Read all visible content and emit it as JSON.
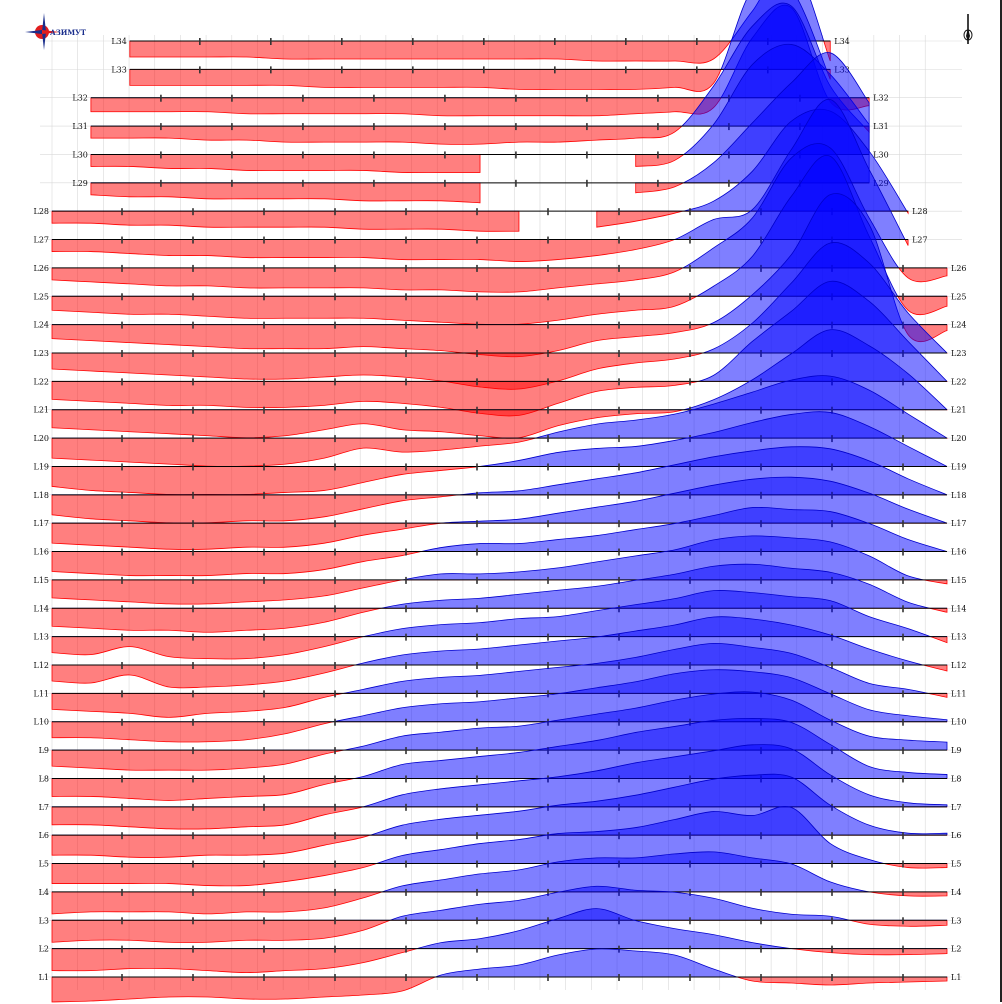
{
  "logo": {
    "text": "АЗИМУТ",
    "colors": {
      "red": "#e11d1d",
      "blue": "#1a2e8c"
    }
  },
  "north_arrow": {
    "icon": "north-arrow-icon"
  },
  "chart_data": {
    "type": "area",
    "description_of_encoding": "stacked profile lines; positive values filled blue above baseline, negative values filled red below",
    "colors": {
      "positive": "#0000ff",
      "negative": "#ff0000",
      "grid": "#d9d9d9",
      "baseline": "#000000"
    },
    "grid": true,
    "stations": 24,
    "profiles": [
      {
        "name": "L1",
        "values": [
          -25,
          -24,
          -22,
          -20,
          -20,
          -22,
          -22,
          -20,
          -18,
          -14,
          2,
          8,
          12,
          22,
          28,
          26,
          22,
          8,
          -4,
          -6,
          -8,
          -6,
          -5,
          -4
        ]
      },
      {
        "name": "L2",
        "values": [
          -22,
          -22,
          -20,
          -20,
          -22,
          -24,
          -22,
          -20,
          -14,
          -4,
          6,
          10,
          18,
          30,
          40,
          28,
          20,
          14,
          6,
          0,
          -4,
          -6,
          -6,
          -5
        ]
      },
      {
        "name": "L3",
        "values": [
          -22,
          -20,
          -20,
          -22,
          -22,
          -20,
          -20,
          -18,
          -10,
          4,
          10,
          16,
          20,
          28,
          34,
          30,
          28,
          22,
          12,
          6,
          4,
          -4,
          -6,
          -5
        ]
      },
      {
        "name": "L4",
        "values": [
          -22,
          -20,
          -20,
          -20,
          -22,
          -20,
          -20,
          -16,
          -6,
          6,
          12,
          18,
          22,
          30,
          34,
          34,
          38,
          40,
          34,
          28,
          10,
          0,
          -4,
          -4
        ]
      },
      {
        "name": "L5",
        "values": [
          -20,
          -20,
          -20,
          -20,
          -22,
          -22,
          -18,
          -12,
          -4,
          8,
          14,
          20,
          24,
          30,
          32,
          36,
          44,
          52,
          48,
          56,
          20,
          4,
          -4,
          -4
        ]
      },
      {
        "name": "L6",
        "values": [
          -20,
          -20,
          -22,
          -22,
          -20,
          -20,
          -18,
          -10,
          -2,
          10,
          16,
          20,
          24,
          30,
          34,
          40,
          48,
          56,
          60,
          58,
          30,
          10,
          2,
          2
        ]
      },
      {
        "name": "L7",
        "values": [
          -18,
          -18,
          -20,
          -22,
          -22,
          -20,
          -18,
          -8,
          0,
          12,
          18,
          22,
          26,
          30,
          36,
          44,
          50,
          56,
          62,
          58,
          32,
          12,
          4,
          2
        ]
      },
      {
        "name": "L8",
        "values": [
          -18,
          -18,
          -20,
          -22,
          -20,
          -18,
          -16,
          -6,
          2,
          14,
          18,
          22,
          26,
          32,
          38,
          46,
          52,
          58,
          60,
          56,
          34,
          12,
          6,
          4
        ]
      },
      {
        "name": "L9",
        "values": [
          -16,
          -18,
          -20,
          -20,
          -20,
          -18,
          -14,
          -4,
          4,
          14,
          18,
          22,
          24,
          30,
          36,
          42,
          50,
          56,
          58,
          50,
          30,
          14,
          10,
          8
        ]
      },
      {
        "name": "L10",
        "values": [
          -16,
          -16,
          -18,
          -20,
          -20,
          -18,
          -12,
          -2,
          6,
          14,
          18,
          20,
          24,
          28,
          34,
          40,
          48,
          52,
          50,
          44,
          28,
          12,
          6,
          2
        ]
      },
      {
        "name": "L11",
        "values": [
          -16,
          -18,
          -20,
          -24,
          -20,
          -18,
          -14,
          -4,
          4,
          12,
          16,
          18,
          22,
          26,
          30,
          36,
          44,
          50,
          46,
          40,
          26,
          10,
          4,
          -4
        ]
      },
      {
        "name": "L12",
        "values": [
          -16,
          -18,
          -10,
          -22,
          -22,
          -20,
          -16,
          -8,
          2,
          10,
          14,
          16,
          20,
          24,
          28,
          34,
          40,
          48,
          46,
          40,
          30,
          16,
          4,
          -6
        ]
      },
      {
        "name": "L13",
        "values": [
          -16,
          -18,
          -10,
          -20,
          -22,
          -22,
          -18,
          -10,
          0,
          8,
          12,
          14,
          18,
          20,
          26,
          32,
          38,
          46,
          44,
          40,
          36,
          20,
          8,
          -6
        ]
      },
      {
        "name": "L14",
        "values": [
          -18,
          -20,
          -22,
          -22,
          -24,
          -22,
          -20,
          -14,
          -4,
          4,
          8,
          10,
          14,
          18,
          22,
          28,
          34,
          42,
          44,
          40,
          36,
          24,
          6,
          -4
        ]
      },
      {
        "name": "L15",
        "values": [
          -18,
          -20,
          -22,
          -24,
          -24,
          -22,
          -20,
          -16,
          -8,
          0,
          6,
          6,
          8,
          12,
          18,
          24,
          30,
          40,
          44,
          42,
          38,
          24,
          4,
          -4
        ]
      },
      {
        "name": "L16",
        "values": [
          -20,
          -22,
          -24,
          -24,
          -24,
          -22,
          -22,
          -18,
          -10,
          -4,
          4,
          8,
          8,
          12,
          16,
          22,
          28,
          36,
          44,
          42,
          40,
          28,
          12,
          0
        ]
      },
      {
        "name": "L17",
        "values": [
          -20,
          -22,
          -24,
          -26,
          -26,
          -24,
          -24,
          -20,
          -12,
          -6,
          0,
          2,
          4,
          10,
          16,
          22,
          30,
          38,
          44,
          46,
          42,
          30,
          14,
          0
        ]
      },
      {
        "name": "L18",
        "values": [
          -20,
          -24,
          -26,
          -28,
          -28,
          -26,
          -26,
          -22,
          -14,
          -6,
          -2,
          2,
          4,
          10,
          16,
          22,
          30,
          38,
          44,
          48,
          46,
          34,
          16,
          0
        ]
      },
      {
        "name": "L19",
        "values": [
          -20,
          -24,
          -26,
          -28,
          -28,
          -28,
          -26,
          -24,
          -16,
          -8,
          -4,
          0,
          6,
          14,
          18,
          20,
          26,
          34,
          44,
          52,
          54,
          40,
          20,
          0
        ]
      },
      {
        "name": "L20",
        "values": [
          -20,
          -22,
          -24,
          -26,
          -28,
          -28,
          -26,
          -20,
          -10,
          -14,
          -12,
          -8,
          -4,
          6,
          14,
          18,
          24,
          34,
          46,
          58,
          62,
          48,
          24,
          0
        ]
      },
      {
        "name": "L21",
        "values": [
          -18,
          -20,
          -22,
          -24,
          -26,
          -28,
          -26,
          -20,
          -14,
          -20,
          -22,
          -26,
          -28,
          -16,
          -8,
          -4,
          -2,
          10,
          30,
          56,
          80,
          64,
          36,
          0
        ]
      },
      {
        "name": "L22",
        "values": [
          -18,
          -20,
          -22,
          -24,
          -24,
          -26,
          -26,
          -24,
          -20,
          -22,
          -26,
          -32,
          -34,
          -22,
          -10,
          -6,
          -4,
          6,
          40,
          70,
          100,
          80,
          40,
          0
        ]
      },
      {
        "name": "L23",
        "values": [
          -16,
          -18,
          -20,
          -22,
          -24,
          -26,
          -26,
          -24,
          -22,
          -24,
          -28,
          -34,
          -36,
          -28,
          -16,
          -10,
          -6,
          4,
          30,
          70,
          110,
          90,
          40,
          0
        ]
      },
      {
        "name": "L24",
        "values": [
          -14,
          -16,
          -18,
          -20,
          -22,
          -24,
          -24,
          -24,
          -22,
          -24,
          -26,
          -30,
          -32,
          -26,
          -16,
          -12,
          -8,
          2,
          30,
          70,
          130,
          100,
          -10,
          -6
        ]
      },
      {
        "name": "L25",
        "values": [
          -14,
          -16,
          -18,
          -18,
          -20,
          -22,
          -22,
          -22,
          -22,
          -24,
          -26,
          -28,
          -28,
          -24,
          -18,
          -14,
          -10,
          10,
          40,
          100,
          140,
          60,
          -14,
          -10
        ]
      },
      {
        "name": "L26",
        "values": [
          -12,
          -14,
          -16,
          -18,
          -18,
          -20,
          -20,
          -20,
          -20,
          -22,
          -22,
          -24,
          -24,
          -20,
          -16,
          -12,
          -4,
          20,
          50,
          110,
          120,
          50,
          -10,
          -8
        ]
      },
      {
        "name": "L27",
        "values": [
          -12,
          -12,
          -14,
          -16,
          -16,
          -18,
          -18,
          -18,
          -18,
          -20,
          -20,
          -20,
          -22,
          -20,
          -16,
          -10,
          0,
          20,
          30,
          90,
          140,
          70,
          -6,
          null
        ]
      },
      {
        "name": "L28",
        "values": [
          -12,
          -12,
          -14,
          -14,
          -16,
          -16,
          -16,
          -16,
          -18,
          -18,
          -18,
          -20,
          -20,
          null,
          -16,
          -10,
          -2,
          10,
          40,
          90,
          100,
          60,
          -2,
          null
        ]
      },
      {
        "name": "L29",
        "values": [
          null,
          -12,
          -14,
          -14,
          -16,
          -16,
          -16,
          -16,
          -18,
          -18,
          -18,
          -20,
          null,
          null,
          null,
          -10,
          -4,
          20,
          60,
          100,
          130,
          80,
          null,
          null
        ]
      },
      {
        "name": "L30",
        "values": [
          null,
          -12,
          -12,
          -14,
          -14,
          -16,
          -16,
          -16,
          -16,
          -18,
          -18,
          -18,
          null,
          null,
          null,
          -12,
          -6,
          30,
          90,
          110,
          80,
          30,
          null,
          null
        ]
      },
      {
        "name": "L31",
        "values": [
          null,
          -12,
          -12,
          -12,
          -14,
          -14,
          -16,
          -16,
          -16,
          -16,
          -18,
          -18,
          -16,
          -16,
          -14,
          -12,
          -6,
          40,
          100,
          120,
          40,
          -6,
          null,
          null
        ]
      },
      {
        "name": "L32",
        "values": [
          null,
          -14,
          -14,
          -14,
          -14,
          -16,
          -16,
          -16,
          -16,
          -16,
          -18,
          -18,
          -18,
          -18,
          -18,
          -16,
          -14,
          -10,
          60,
          90,
          -4,
          -8,
          null,
          null
        ]
      },
      {
        "name": "L33",
        "values": [
          null,
          null,
          -16,
          -16,
          -16,
          -16,
          -16,
          -18,
          -18,
          -18,
          -18,
          -18,
          -20,
          -20,
          -20,
          -20,
          -18,
          -14,
          80,
          80,
          -10,
          null,
          null,
          null
        ]
      },
      {
        "name": "L34",
        "values": [
          null,
          null,
          -16,
          -16,
          -16,
          -16,
          -18,
          -18,
          -18,
          -18,
          -18,
          -18,
          -18,
          -18,
          -20,
          -20,
          -20,
          -18,
          30,
          80,
          -20,
          null,
          null,
          null
        ]
      }
    ]
  }
}
